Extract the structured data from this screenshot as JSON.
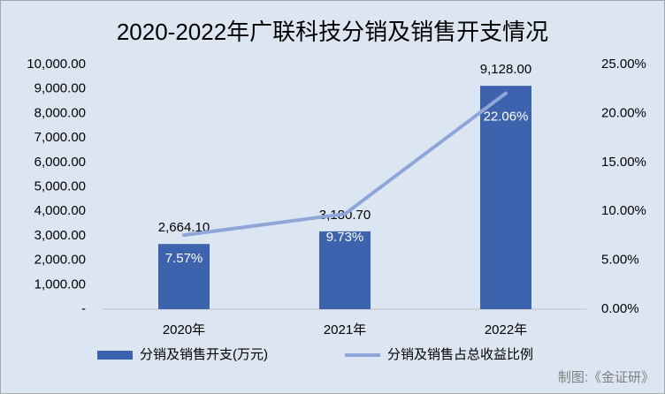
{
  "chart_data": {
    "type": "bar",
    "title": "2020-2022年广联科技分销及销售开支情况",
    "source": "制图:《金证研》",
    "categories": [
      "2020年",
      "2021年",
      "2022年"
    ],
    "series": [
      {
        "name": "分销及销售开支(万元)",
        "type": "bar",
        "color": "#3d63ae",
        "values": [
          2664.1,
          3180.7,
          9128.0
        ],
        "value_labels": [
          "2,664.10",
          "3,180.70",
          "9,128.00"
        ]
      },
      {
        "name": "分销及销售占总收益比例",
        "type": "line",
        "axis": "y2",
        "color": "#8fa6d9",
        "values": [
          7.57,
          9.73,
          22.06
        ],
        "value_labels": [
          "7.57%",
          "9.73%",
          "22.06%"
        ]
      }
    ],
    "ylim": [
      0,
      10000
    ],
    "yticks": [
      {
        "value": 0,
        "label": "-"
      },
      {
        "value": 1000,
        "label": "1,000.00"
      },
      {
        "value": 2000,
        "label": "2,000.00"
      },
      {
        "value": 3000,
        "label": "3,000.00"
      },
      {
        "value": 4000,
        "label": "4,000.00"
      },
      {
        "value": 5000,
        "label": "5,000.00"
      },
      {
        "value": 6000,
        "label": "6,000.00"
      },
      {
        "value": 7000,
        "label": "7,000.00"
      },
      {
        "value": 8000,
        "label": "8,000.00"
      },
      {
        "value": 9000,
        "label": "9,000.00"
      },
      {
        "value": 10000,
        "label": "10,000.00"
      }
    ],
    "y2lim": [
      0,
      25
    ],
    "y2ticks": [
      {
        "value": 0,
        "label": "0.00%"
      },
      {
        "value": 5,
        "label": "5.00%"
      },
      {
        "value": 10,
        "label": "10.00%"
      },
      {
        "value": 15,
        "label": "15.00%"
      },
      {
        "value": 20,
        "label": "20.00%"
      },
      {
        "value": 25,
        "label": "25.00%"
      }
    ],
    "grid": false,
    "legend": "bottom"
  }
}
